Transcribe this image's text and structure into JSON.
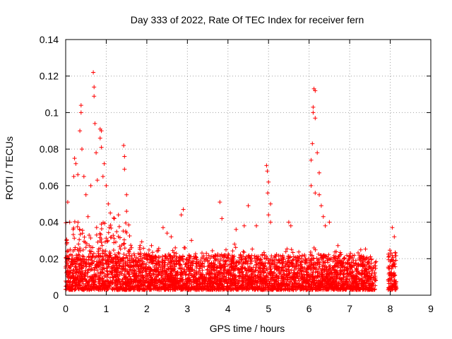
{
  "chart_data": {
    "type": "scatter",
    "title": "Day 333 of 2022, Rate Of TEC Index for receiver fern",
    "xlabel": "GPS time / hours",
    "ylabel": "ROTI / TECUs",
    "xlim": [
      0,
      9
    ],
    "ylim": [
      0,
      0.14
    ],
    "xticks": [
      "0",
      "1",
      "2",
      "3",
      "4",
      "5",
      "6",
      "7",
      "8",
      "9"
    ],
    "yticks": [
      "0",
      "0.02",
      "0.04",
      "0.06",
      "0.08",
      "0.1",
      "0.12",
      "0.14"
    ],
    "grid": true,
    "marker": "+",
    "color": "#ff0000",
    "x_coverage": [
      0,
      7.65
    ],
    "gap": [
      7.65,
      7.95
    ],
    "x_coverage_2": [
      7.95,
      8.15
    ],
    "baseline_range": [
      0.003,
      0.022
    ],
    "notable_points": [
      {
        "x": 0.05,
        "y": 0.051
      },
      {
        "x": 0.1,
        "y": 0.04
      },
      {
        "x": 0.2,
        "y": 0.065
      },
      {
        "x": 0.22,
        "y": 0.075
      },
      {
        "x": 0.25,
        "y": 0.072
      },
      {
        "x": 0.3,
        "y": 0.066
      },
      {
        "x": 0.35,
        "y": 0.09
      },
      {
        "x": 0.38,
        "y": 0.1
      },
      {
        "x": 0.38,
        "y": 0.104
      },
      {
        "x": 0.4,
        "y": 0.08
      },
      {
        "x": 0.45,
        "y": 0.065
      },
      {
        "x": 0.5,
        "y": 0.055
      },
      {
        "x": 0.55,
        "y": 0.043
      },
      {
        "x": 0.62,
        "y": 0.06
      },
      {
        "x": 0.68,
        "y": 0.122
      },
      {
        "x": 0.7,
        "y": 0.114
      },
      {
        "x": 0.7,
        "y": 0.109
      },
      {
        "x": 0.72,
        "y": 0.094
      },
      {
        "x": 0.75,
        "y": 0.078
      },
      {
        "x": 0.78,
        "y": 0.063
      },
      {
        "x": 0.85,
        "y": 0.091
      },
      {
        "x": 0.88,
        "y": 0.09
      },
      {
        "x": 0.85,
        "y": 0.086
      },
      {
        "x": 0.88,
        "y": 0.081
      },
      {
        "x": 0.95,
        "y": 0.072
      },
      {
        "x": 0.92,
        "y": 0.065
      },
      {
        "x": 1.0,
        "y": 0.06
      },
      {
        "x": 1.05,
        "y": 0.05
      },
      {
        "x": 1.1,
        "y": 0.045
      },
      {
        "x": 1.2,
        "y": 0.042
      },
      {
        "x": 1.3,
        "y": 0.044
      },
      {
        "x": 1.43,
        "y": 0.082
      },
      {
        "x": 1.45,
        "y": 0.076
      },
      {
        "x": 1.45,
        "y": 0.069
      },
      {
        "x": 1.5,
        "y": 0.055
      },
      {
        "x": 1.5,
        "y": 0.046
      },
      {
        "x": 2.4,
        "y": 0.037
      },
      {
        "x": 2.5,
        "y": 0.034
      },
      {
        "x": 2.6,
        "y": 0.032
      },
      {
        "x": 2.85,
        "y": 0.044
      },
      {
        "x": 2.9,
        "y": 0.047
      },
      {
        "x": 3.1,
        "y": 0.03
      },
      {
        "x": 3.8,
        "y": 0.051
      },
      {
        "x": 3.85,
        "y": 0.042
      },
      {
        "x": 4.2,
        "y": 0.036
      },
      {
        "x": 4.4,
        "y": 0.038
      },
      {
        "x": 4.5,
        "y": 0.049
      },
      {
        "x": 4.7,
        "y": 0.038
      },
      {
        "x": 4.95,
        "y": 0.071
      },
      {
        "x": 4.97,
        "y": 0.068
      },
      {
        "x": 5.0,
        "y": 0.062
      },
      {
        "x": 4.98,
        "y": 0.056
      },
      {
        "x": 5.05,
        "y": 0.05
      },
      {
        "x": 5.0,
        "y": 0.044
      },
      {
        "x": 5.05,
        "y": 0.04
      },
      {
        "x": 5.5,
        "y": 0.04
      },
      {
        "x": 5.55,
        "y": 0.038
      },
      {
        "x": 6.05,
        "y": 0.074
      },
      {
        "x": 6.08,
        "y": 0.083
      },
      {
        "x": 6.1,
        "y": 0.1
      },
      {
        "x": 6.1,
        "y": 0.103
      },
      {
        "x": 6.12,
        "y": 0.113
      },
      {
        "x": 6.15,
        "y": 0.112
      },
      {
        "x": 6.15,
        "y": 0.097
      },
      {
        "x": 6.2,
        "y": 0.078
      },
      {
        "x": 6.25,
        "y": 0.067
      },
      {
        "x": 6.05,
        "y": 0.06
      },
      {
        "x": 6.15,
        "y": 0.056
      },
      {
        "x": 6.25,
        "y": 0.055
      },
      {
        "x": 6.3,
        "y": 0.049
      },
      {
        "x": 6.35,
        "y": 0.043
      },
      {
        "x": 6.4,
        "y": 0.038
      },
      {
        "x": 6.5,
        "y": 0.04
      },
      {
        "x": 8.05,
        "y": 0.037
      },
      {
        "x": 8.1,
        "y": 0.032
      }
    ]
  }
}
